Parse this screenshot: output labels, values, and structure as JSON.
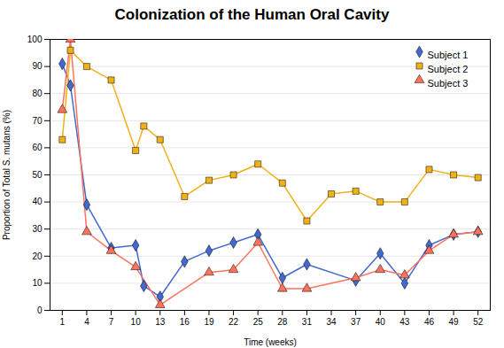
{
  "chart_data": {
    "type": "line",
    "title": "Colonization of the Human Oral Cavity",
    "xlabel": "Time (weeks)",
    "ylabel": "Proportion of Total S. mutans (%)",
    "xlim": [
      -0.5,
      53.5
    ],
    "xticks": [
      1,
      4,
      7,
      10,
      13,
      16,
      19,
      22,
      25,
      28,
      31,
      34,
      37,
      40,
      43,
      46,
      49,
      52
    ],
    "ylim": [
      0,
      100
    ],
    "yticks": [
      0,
      10,
      20,
      30,
      40,
      50,
      60,
      70,
      80,
      90,
      100
    ],
    "grid": "y",
    "legend": "upper right",
    "series": [
      {
        "name": "Subject 1",
        "marker": "diamond",
        "x": [
          1,
          2,
          4,
          7,
          10,
          11,
          13,
          16,
          19,
          22,
          25,
          28,
          31,
          37,
          40,
          43,
          46,
          49,
          52
        ],
        "values": [
          91,
          83,
          39,
          23,
          24,
          9,
          5,
          18,
          22,
          25,
          28,
          12,
          17,
          11,
          21,
          10,
          24,
          28,
          29
        ]
      },
      {
        "name": "Subject 2",
        "marker": "square",
        "x": [
          1,
          2,
          4,
          7,
          10,
          11,
          13,
          16,
          19,
          22,
          25,
          28,
          31,
          34,
          37,
          40,
          43,
          46,
          49,
          52
        ],
        "values": [
          63,
          96,
          90,
          85,
          59,
          68,
          63,
          42,
          48,
          50,
          54,
          47,
          33,
          43,
          44,
          40,
          40,
          52,
          50,
          49
        ]
      },
      {
        "name": "Subject 3",
        "marker": "triangle",
        "x": [
          1,
          2,
          4,
          7,
          10,
          13,
          19,
          22,
          25,
          28,
          31,
          37,
          40,
          43,
          46,
          49,
          52
        ],
        "values": [
          74,
          100,
          29,
          22,
          16,
          2,
          14,
          15,
          25,
          8,
          8,
          12,
          15,
          13,
          22,
          28,
          29
        ]
      }
    ]
  }
}
